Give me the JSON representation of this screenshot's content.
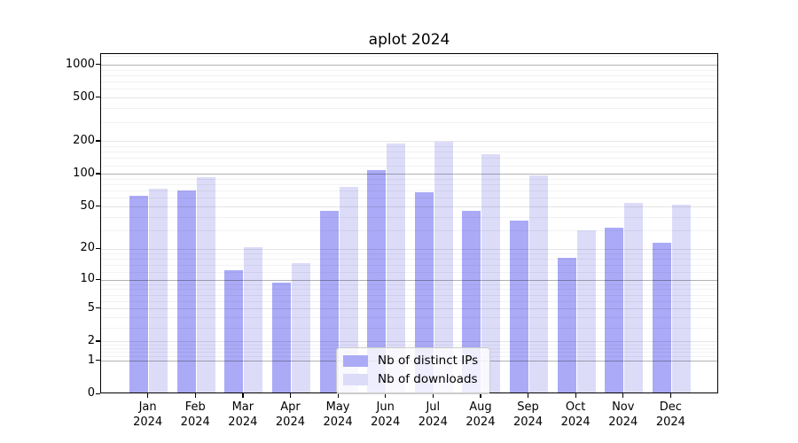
{
  "title": "aplot 2024",
  "colors": {
    "distinct_ips": "#aaaaf7",
    "downloads": "#dcdcf9",
    "grid_decade": "rgba(0,0,0,0.30)",
    "grid_major": "rgba(0,0,0,0.10)",
    "grid_minor": "rgba(0,0,0,0.05)"
  },
  "chart_data": {
    "type": "bar",
    "title": "aplot 2024",
    "categories": [
      "Jan",
      "Feb",
      "Mar",
      "Apr",
      "May",
      "Jun",
      "Jul",
      "Aug",
      "Sep",
      "Oct",
      "Nov",
      "Dec"
    ],
    "year": "2024",
    "series": [
      {
        "name": "Nb of distinct IPs",
        "color": "#aaaaf7",
        "values": [
          61,
          68,
          12,
          9,
          44,
          105,
          66,
          44,
          36,
          16,
          31,
          22
        ]
      },
      {
        "name": "Nb of downloads",
        "color": "#dcdcf9",
        "values": [
          71,
          91,
          20,
          14,
          74,
          185,
          193,
          148,
          94,
          29,
          53,
          51
        ]
      }
    ],
    "yscale": "log1p",
    "y_ticks": [
      0,
      1,
      2,
      5,
      10,
      20,
      50,
      100,
      200,
      500,
      1000
    ],
    "y_decade_ticks": [
      1,
      10,
      100,
      1000
    ],
    "ylim": [
      0,
      1270
    ],
    "xlabel": "",
    "ylabel": "",
    "grid": true,
    "legend_position": "lower center"
  }
}
